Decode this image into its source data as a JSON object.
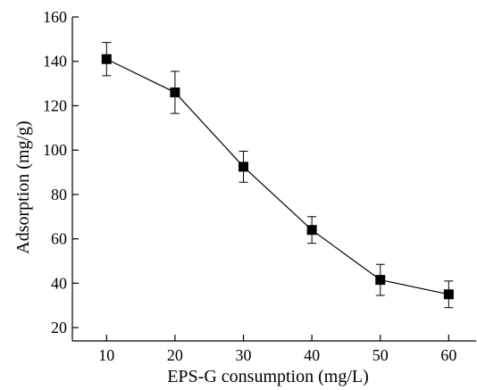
{
  "chart_data": {
    "type": "line",
    "title": "",
    "xlabel": "EPS-G consumption (mg/L)",
    "ylabel": "Adsorption (mg/g)",
    "x_ticks": [
      "10",
      "20",
      "30",
      "40",
      "50",
      "60"
    ],
    "y_ticks": [
      "20",
      "40",
      "60",
      "80",
      "100",
      "120",
      "140",
      "160"
    ],
    "xlim": [
      5,
      64
    ],
    "ylim": [
      14,
      160
    ],
    "grid": false,
    "legend": "none",
    "colors": {
      "series": "#000000",
      "marker": "#000000",
      "axes": "#000000"
    },
    "series": [
      {
        "marker": "square",
        "x": [
          10,
          20,
          30,
          40,
          50,
          60
        ],
        "y": [
          141,
          126,
          92.5,
          64,
          41.5,
          35
        ],
        "error": [
          7.5,
          9.5,
          7,
          6,
          7,
          6
        ]
      }
    ]
  }
}
